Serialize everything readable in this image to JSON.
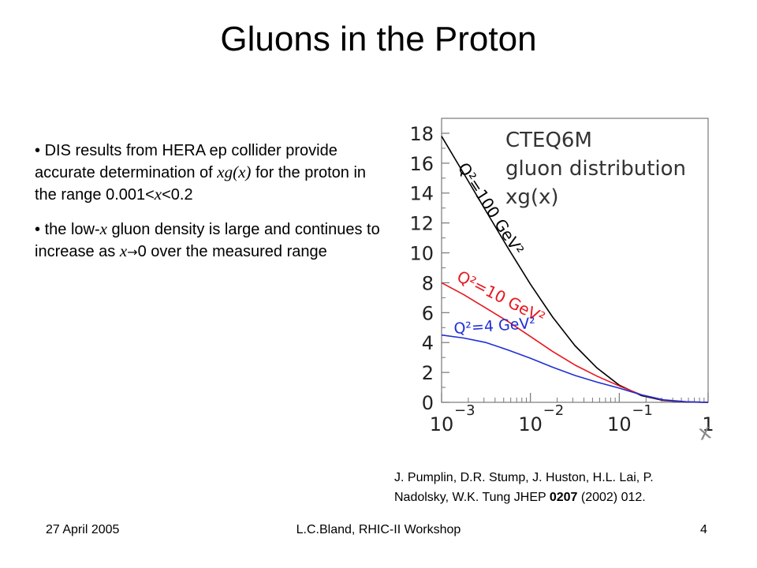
{
  "slide": {
    "title": "Gluons in the Proton",
    "bullets": [
      {
        "p1": "DIS results from HERA ep collider provide accurate determination of ",
        "m1": "xg",
        "p2": "(",
        "m2": "x",
        "p3": ")",
        "p4": " for the proton in the range 0.001<",
        "m3": "x",
        "p5": "<0.2"
      },
      {
        "p1": "the low-",
        "m1": "x",
        "p2": " gluon density is large and continues to increase as ",
        "m2": "x",
        "arrow": "→",
        "p3": "0 over the measured range"
      }
    ],
    "citation": {
      "line1": "J. Pumplin, D.R. Stump, J. Huston, H.L. Lai, P.",
      "line2_pre": "Nadolsky, W.K. Tung JHEP ",
      "line2_bold": "0207",
      "line2_post": " (2002) 012."
    },
    "footer": {
      "date": "27 April 2005",
      "event": "L.C.Bland, RHIC-II Workshop",
      "page": "4"
    }
  },
  "chart_data": {
    "type": "line",
    "title_lines": [
      "CTEQ6M",
      "gluon distribution",
      "xg(x)"
    ],
    "xlabel": "x",
    "x_scale": "log",
    "xlim": [
      0.001,
      1
    ],
    "ylim": [
      0,
      19
    ],
    "y_ticks": [
      0,
      2,
      4,
      6,
      8,
      10,
      12,
      14,
      16,
      18
    ],
    "x_ticks": [
      {
        "value": 0.001,
        "base": "10",
        "exp": "−3"
      },
      {
        "value": 0.01,
        "base": "10",
        "exp": "−2"
      },
      {
        "value": 0.1,
        "base": "10",
        "exp": "−1"
      },
      {
        "value": 1,
        "base": "1",
        "exp": ""
      }
    ],
    "series": [
      {
        "name": "Q²=100 GeV²",
        "color": "#000000",
        "x": [
          0.001,
          0.00178,
          0.00316,
          0.00562,
          0.01,
          0.0178,
          0.0316,
          0.0562,
          0.1,
          0.178,
          0.316,
          0.562,
          1
        ],
        "y": [
          17.8,
          15.3,
          12.8,
          10.3,
          7.9,
          5.7,
          3.8,
          2.3,
          1.15,
          0.45,
          0.12,
          0.02,
          0
        ]
      },
      {
        "name": "Q²=10 GeV²",
        "color": "#e8161e",
        "x": [
          0.001,
          0.00178,
          0.00316,
          0.00562,
          0.01,
          0.0178,
          0.0316,
          0.0562,
          0.1,
          0.178,
          0.316,
          0.562,
          1
        ],
        "y": [
          8.0,
          7.2,
          6.3,
          5.4,
          4.4,
          3.4,
          2.5,
          1.75,
          1.1,
          0.5,
          0.15,
          0.03,
          0
        ]
      },
      {
        "name": "Q²=4 GeV²",
        "color": "#1f2fd6",
        "x": [
          0.001,
          0.00178,
          0.00316,
          0.00562,
          0.01,
          0.0178,
          0.0316,
          0.0562,
          0.1,
          0.178,
          0.316,
          0.562,
          1
        ],
        "y": [
          4.5,
          4.3,
          4.0,
          3.5,
          2.95,
          2.35,
          1.8,
          1.35,
          0.95,
          0.5,
          0.17,
          0.04,
          0
        ]
      }
    ]
  }
}
